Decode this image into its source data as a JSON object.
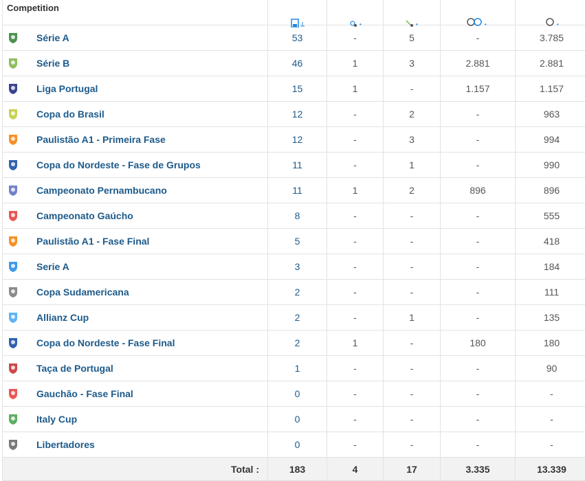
{
  "header": {
    "competition_label": "Competition",
    "icons": [
      "appearances-icon",
      "goals-icon",
      "assists-icon",
      "minutes-per-goal-icon",
      "minutes-played-icon"
    ]
  },
  "rows": [
    {
      "competition": "Série A",
      "logo": "brasileirao-serie-a-logo",
      "color": "#2e7d32",
      "apps": "53",
      "goals": "-",
      "assists": "5",
      "min_per_goal": "-",
      "minutes": "3.785"
    },
    {
      "competition": "Série B",
      "logo": "brasileirao-serie-b-logo",
      "color": "#7cb342",
      "apps": "46",
      "goals": "1",
      "assists": "3",
      "min_per_goal": "2.881",
      "minutes": "2.881"
    },
    {
      "competition": "Liga Portugal",
      "logo": "liga-portugal-logo",
      "color": "#1a237e",
      "apps": "15",
      "goals": "1",
      "assists": "-",
      "min_per_goal": "1.157",
      "minutes": "1.157"
    },
    {
      "competition": "Copa do Brasil",
      "logo": "copa-do-brasil-logo",
      "color": "#c0ca33",
      "apps": "12",
      "goals": "-",
      "assists": "2",
      "min_per_goal": "-",
      "minutes": "963"
    },
    {
      "competition": "Paulistão A1 - Primeira Fase",
      "logo": "paulistao-logo",
      "color": "#f57c00",
      "apps": "12",
      "goals": "-",
      "assists": "3",
      "min_per_goal": "-",
      "minutes": "994"
    },
    {
      "competition": "Copa do Nordeste - Fase de Grupos",
      "logo": "copa-do-nordeste-logo",
      "color": "#0d47a1",
      "apps": "11",
      "goals": "-",
      "assists": "1",
      "min_per_goal": "-",
      "minutes": "990"
    },
    {
      "competition": "Campeonato Pernambucano",
      "logo": "campeonato-pernambucano-logo",
      "color": "#5c6bc0",
      "apps": "11",
      "goals": "1",
      "assists": "2",
      "min_per_goal": "896",
      "minutes": "896"
    },
    {
      "competition": "Campeonato Gaúcho",
      "logo": "campeonato-gaucho-logo",
      "color": "#e53935",
      "apps": "8",
      "goals": "-",
      "assists": "-",
      "min_per_goal": "-",
      "minutes": "555"
    },
    {
      "competition": "Paulistão A1 - Fase Final",
      "logo": "paulistao-logo",
      "color": "#f57c00",
      "apps": "5",
      "goals": "-",
      "assists": "-",
      "min_per_goal": "-",
      "minutes": "418"
    },
    {
      "competition": "Serie A",
      "logo": "serie-a-italy-logo",
      "color": "#1e88e5",
      "apps": "3",
      "goals": "-",
      "assists": "-",
      "min_per_goal": "-",
      "minutes": "184"
    },
    {
      "competition": "Copa Sudamericana",
      "logo": "copa-sudamericana-logo",
      "color": "#757575",
      "apps": "2",
      "goals": "-",
      "assists": "-",
      "min_per_goal": "-",
      "minutes": "111"
    },
    {
      "competition": "Allianz Cup",
      "logo": "allianz-cup-logo",
      "color": "#42a5f5",
      "apps": "2",
      "goals": "-",
      "assists": "1",
      "min_per_goal": "-",
      "minutes": "135"
    },
    {
      "competition": "Copa do Nordeste - Fase Final",
      "logo": "copa-do-nordeste-logo",
      "color": "#0d47a1",
      "apps": "2",
      "goals": "1",
      "assists": "-",
      "min_per_goal": "180",
      "minutes": "180"
    },
    {
      "competition": "Taça de Portugal",
      "logo": "taca-de-portugal-logo",
      "color": "#c62828",
      "apps": "1",
      "goals": "-",
      "assists": "-",
      "min_per_goal": "-",
      "minutes": "90"
    },
    {
      "competition": "Gauchão - Fase Final",
      "logo": "campeonato-gaucho-logo",
      "color": "#e53935",
      "apps": "0",
      "goals": "-",
      "assists": "-",
      "min_per_goal": "-",
      "minutes": "-"
    },
    {
      "competition": "Italy Cup",
      "logo": "coppa-italia-logo",
      "color": "#43a047",
      "apps": "0",
      "goals": "-",
      "assists": "-",
      "min_per_goal": "-",
      "minutes": "-"
    },
    {
      "competition": "Libertadores",
      "logo": "libertadores-logo",
      "color": "#616161",
      "apps": "0",
      "goals": "-",
      "assists": "-",
      "min_per_goal": "-",
      "minutes": "-"
    }
  ],
  "totals": {
    "label": "Total :",
    "apps": "183",
    "goals": "4",
    "assists": "17",
    "min_per_goal": "3.335",
    "minutes": "13.339"
  },
  "colors": {
    "link": "#1d5a8a",
    "border": "#e2e2e2",
    "footer_bg": "#f2f2f2"
  }
}
